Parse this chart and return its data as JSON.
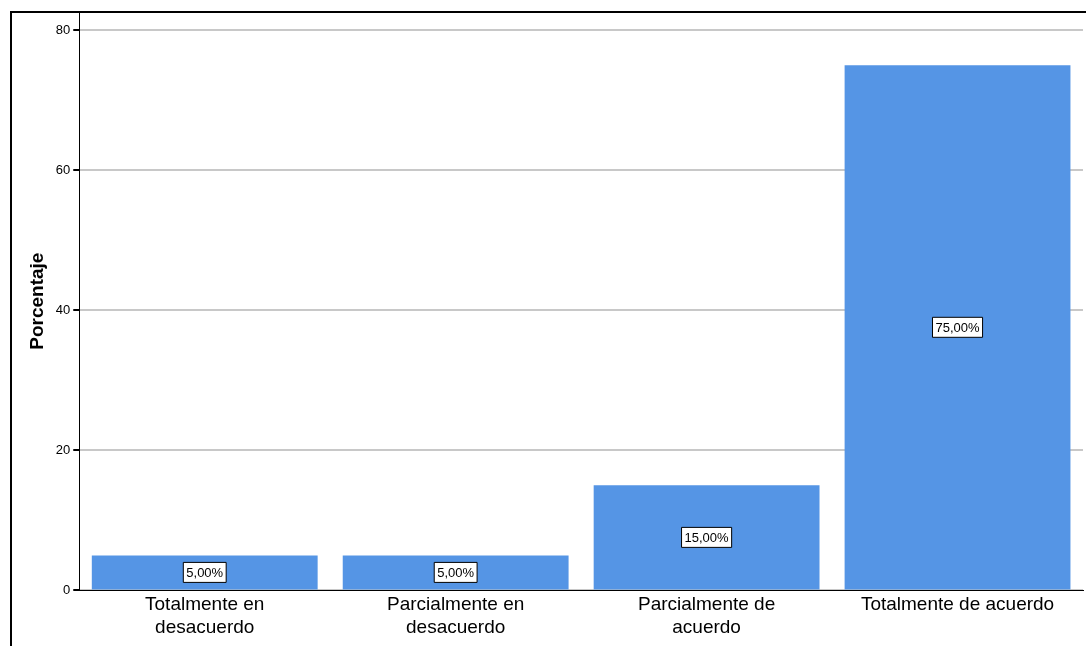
{
  "chart_data": {
    "type": "bar",
    "ylabel": "Porcentaje",
    "categories": [
      "Totalmente en desacuerdo",
      "Parcialmente en desacuerdo",
      "Parcialmente de acuerdo",
      "Totalmente de acuerdo"
    ],
    "values": [
      5,
      5,
      15,
      75
    ],
    "value_labels": [
      "5,00%",
      "5,00%",
      "15,00%",
      "75,00%"
    ],
    "color": "#5595e5",
    "ylim": [
      0,
      82.6
    ],
    "yticks": [
      0,
      20,
      40,
      60,
      80
    ],
    "grid": "y",
    "legend": false
  }
}
